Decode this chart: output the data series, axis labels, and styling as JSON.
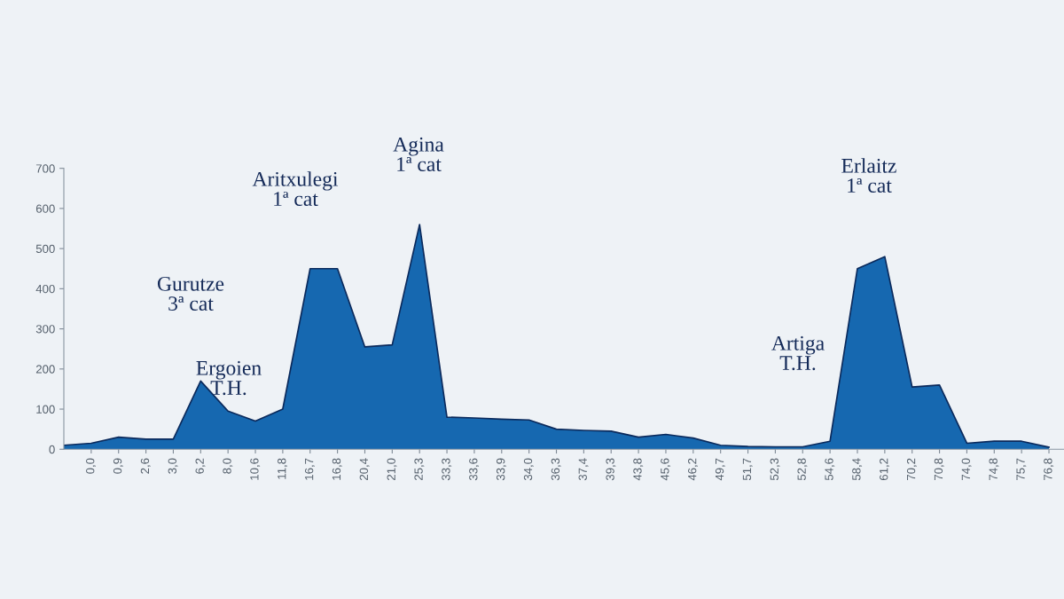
{
  "chart_data": {
    "type": "area",
    "categories": [
      null,
      "0,0",
      "0,9",
      "2,6",
      "3,0",
      "6,2",
      "8,0",
      "10,6",
      "11,8",
      "16,7",
      "16,8",
      "20,4",
      "21,0",
      "25,3",
      "33,3",
      "33,6",
      "33,9",
      "34,0",
      "36,3",
      "37,4",
      "39,3",
      "43,8",
      "45,6",
      "46,2",
      "49,7",
      "51,7",
      "52,3",
      "52,8",
      "54,6",
      "58,4",
      "61,2",
      "70,2",
      "70,8",
      "74,0",
      "74,8",
      "75,7",
      "76,8"
    ],
    "values": [
      10,
      15,
      30,
      25,
      25,
      170,
      95,
      70,
      100,
      450,
      450,
      255,
      260,
      560,
      80,
      78,
      75,
      73,
      50,
      47,
      45,
      30,
      37,
      28,
      10,
      7,
      6,
      6,
      20,
      450,
      480,
      155,
      160,
      15,
      20,
      20,
      5
    ],
    "color": "#1668b0",
    "ylim": [
      0,
      700
    ],
    "yticks": [
      0,
      100,
      200,
      300,
      400,
      500,
      600,
      700
    ],
    "grid": false,
    "legend": false,
    "annotations": [
      "Gurutze\n3ª cat",
      "Ergoien\nT.H.",
      "Aritxulegi\n1ª cat",
      "Agina\n1ª cat",
      "Artiga\nT.H.",
      "Erlaitz\n1ª cat"
    ]
  }
}
